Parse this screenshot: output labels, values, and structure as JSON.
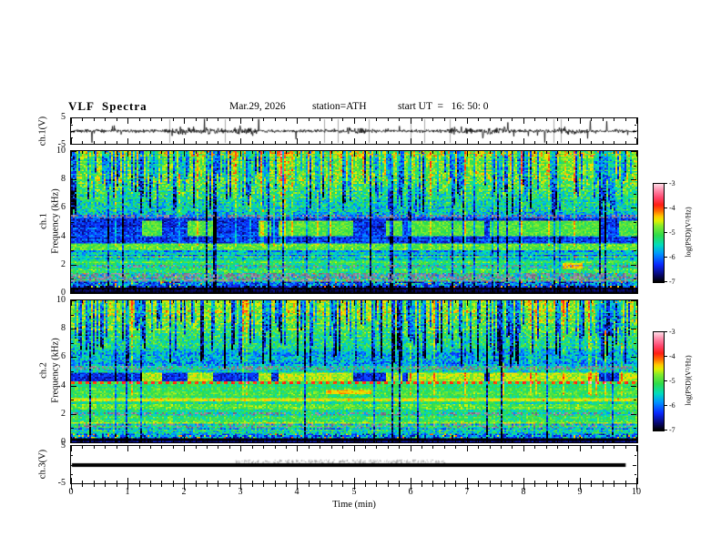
{
  "header": {
    "title": "VLF  Spectra",
    "date": "Mar.29, 2026",
    "station": "station=ATH",
    "start_ut": "start UT  =   16: 50: 0"
  },
  "axes": {
    "time_label": "Time  (min)",
    "time_ticks": [
      "0",
      "1",
      "2",
      "3",
      "4",
      "5",
      "6",
      "7",
      "8",
      "9",
      "10"
    ],
    "freq_ticks": [
      "10",
      "8",
      "6",
      "4",
      "2",
      "0"
    ],
    "volt_ticks": [
      "5",
      "-5"
    ],
    "ch1_wf_label": "ch.1(V)",
    "ch3_wf_label": "ch.3(V)",
    "spec1_channel_label": "ch.1",
    "spec2_channel_label": "ch.2",
    "freq_axis_label": "Frequency  (kHz)"
  },
  "colorbar": {
    "label": "log(PSD)(V²/Hz)",
    "ticks": [
      "-3",
      "-4",
      "-5",
      "-6",
      "-7"
    ],
    "z_range": [
      -7,
      -3
    ]
  },
  "colormap_stops": [
    [
      -7.0,
      0,
      0,
      0
    ],
    [
      -6.72,
      8,
      8,
      110
    ],
    [
      -6.3,
      10,
      40,
      255
    ],
    [
      -5.85,
      0,
      150,
      255
    ],
    [
      -5.5,
      0,
      220,
      190
    ],
    [
      -5.1,
      45,
      220,
      75
    ],
    [
      -4.72,
      130,
      235,
      45
    ],
    [
      -4.5,
      225,
      240,
      0
    ],
    [
      -4.32,
      255,
      200,
      0
    ],
    [
      -4.1,
      255,
      110,
      0
    ],
    [
      -3.85,
      255,
      30,
      20
    ],
    [
      -3.55,
      255,
      70,
      110
    ],
    [
      -3.25,
      255,
      140,
      170
    ],
    [
      -3.0,
      255,
      215,
      228
    ]
  ],
  "chart_data": [
    {
      "type": "line",
      "panel": "ch1_waveform",
      "x_range": [
        0,
        10
      ],
      "y_range": [
        -5,
        5
      ],
      "x_unit": "min",
      "y_unit": "V",
      "description": "broadband noise trace centred on 0 V with impulsive spikes to ±5 V",
      "gen": {
        "seed": 42,
        "points": 1244,
        "sigma": 0.5,
        "spike_prob": 0.013,
        "spike_amp_min": 1.5,
        "spike_amp_max": 4.6,
        "down_bias": 0.6,
        "bursts": 7,
        "burst_len": 26,
        "burst_gain": 2.2,
        "gray_lines": 10
      }
    },
    {
      "type": "heatmap",
      "panel": "ch1_spectrogram",
      "x_range": [
        0,
        10
      ],
      "y_range": [
        0,
        10
      ],
      "x_unit": "min",
      "y_unit": "kHz",
      "z_label": "log(PSD)(V²/Hz)",
      "z_range": [
        -7,
        -3
      ],
      "description": "VLF spectrogram: green hiss above 5.5 kHz cut by dark sferic streaks, dark 3.5-5.3 kHz band with intermittent green transmitter blocks, layered lines below 3 kHz, black band at 0-0.35 kHz",
      "gen": {
        "seed": 9,
        "cols": 311,
        "rows": 100,
        "bands": [
          [
            10,
            8.35,
            -4.85,
            0.45,
            0,
            0,
            0
          ],
          [
            8.35,
            5.5,
            -5.2,
            0.6,
            0,
            0,
            0.28
          ],
          [
            5.5,
            5.28,
            -5.9,
            0.4,
            0.45,
            0,
            0
          ],
          [
            5.28,
            3.45,
            -6.3,
            0.38,
            0,
            0,
            -0.1
          ],
          [
            3.45,
            2.95,
            -5.0,
            0.35,
            0,
            0,
            0
          ],
          [
            2.95,
            2.62,
            -5.7,
            0.5,
            0,
            0,
            0
          ],
          [
            2.62,
            2.48,
            -5.3,
            0.5,
            0,
            0.1,
            0
          ],
          [
            2.48,
            2.25,
            -5.75,
            0.5,
            0,
            0,
            0
          ],
          [
            2.25,
            1.98,
            -5.15,
            0.4,
            0,
            0,
            0
          ],
          [
            1.98,
            1.78,
            -5.55,
            0.5,
            0.3,
            0,
            0
          ],
          [
            1.78,
            1.4,
            -5.1,
            0.5,
            0,
            0,
            0
          ],
          [
            1.4,
            0.8,
            -5.4,
            0.55,
            0.5,
            0.06,
            0
          ],
          [
            0.8,
            0.35,
            -6.2,
            0.65,
            0,
            0.1,
            0
          ],
          [
            0.35,
            0,
            -6.9,
            0.15,
            0,
            0,
            0
          ]
        ],
        "blocks": {
          "f": [
            3.98,
            5.06
          ],
          "mode": "on_bright",
          "on_level": -4.95,
          "off_level": -6.3,
          "noise": 0.3,
          "intervals": [
            [
              1.25,
              1.6
            ],
            [
              2.05,
              2.5
            ],
            [
              3.3,
              3.55
            ],
            [
              3.65,
              5.0
            ],
            [
              5.55,
              5.85
            ],
            [
              5.95,
              7.3
            ],
            [
              7.38,
              9.33
            ],
            [
              9.68,
              10
            ]
          ]
        },
        "streaks": {
          "windows": [
            [
              0,
              3.35,
              0.55
            ],
            [
              3.35,
              5.2,
              0.38
            ],
            [
              5.2,
              6.6,
              0.48
            ],
            [
              6.6,
              9.3,
              0.5
            ],
            [
              9.3,
              9.72,
              0.8
            ],
            [
              9.72,
              10,
              0.25
            ]
          ],
          "smin": 0.8,
          "smax": 2.0,
          "fmin_base": 5.4,
          "fmin_spread": 3.2,
          "full_prob": 0.12
        },
        "bright_cols": {
          "prob": 0.05,
          "fmin": 3.3,
          "boost": 0.7
        },
        "yellow_cols": {
          "prob": 0.22,
          "fmin": 8.3,
          "boost": 0.35
        },
        "top_hot": {
          "fmin": 9.55,
          "boost": 0.5,
          "orange_prob": 0.08
        },
        "patches": [
          {
            "t": [
              8.68,
              9.02
            ],
            "f": [
              1.7,
              2.15
            ],
            "level": -4.35,
            "noise": 0.25
          }
        ]
      }
    },
    {
      "type": "heatmap",
      "panel": "ch2_spectrogram",
      "x_range": [
        0,
        10
      ],
      "y_range": [
        0,
        10
      ],
      "x_unit": "min",
      "y_unit": "kHz",
      "z_label": "log(PSD)(V²/Hz)",
      "z_range": [
        -7,
        -3
      ],
      "description": "VLF spectrogram: bright green top band, blue sferic streaks 5-9 kHz, yellow-green 4.4-4.9 kHz band with dark off-blocks, continuous red dotted line near 4.2 kHz, orange line near 3 kHz, green background below",
      "gen": {
        "seed": 23,
        "cols": 311,
        "rows": 100,
        "bands": [
          [
            10,
            9.3,
            -4.7,
            0.35,
            0,
            0,
            0
          ],
          [
            9.3,
            6.6,
            -5.05,
            0.55,
            0,
            0,
            0.3
          ],
          [
            6.6,
            5.35,
            -5.75,
            0.55,
            0,
            0,
            0.25
          ],
          [
            5.35,
            5.08,
            -5.45,
            0.4,
            0.4,
            0,
            0
          ],
          [
            5.08,
            4.88,
            -5.5,
            0.45,
            0,
            0,
            0
          ],
          [
            4.88,
            4.35,
            -4.75,
            0.3,
            0,
            0,
            0
          ],
          [
            4.35,
            4.1,
            -5.0,
            0.3,
            0,
            0,
            0
          ],
          [
            4.1,
            3.1,
            -5.05,
            0.35,
            0,
            0,
            0
          ],
          [
            3.1,
            2.88,
            -4.55,
            0.25,
            0,
            0.05,
            0
          ],
          [
            2.88,
            2.1,
            -5.1,
            0.4,
            0,
            0,
            0
          ],
          [
            2.1,
            1.85,
            -5.5,
            0.45,
            0.35,
            0,
            0
          ],
          [
            1.85,
            1.3,
            -5.0,
            0.45,
            0,
            0,
            0
          ],
          [
            1.3,
            1.05,
            -5.35,
            0.5,
            0.25,
            0,
            0
          ],
          [
            1.05,
            0.6,
            -5.55,
            0.6,
            0,
            0,
            0
          ],
          [
            0.6,
            0.3,
            -6.15,
            0.7,
            0,
            0.12,
            0
          ],
          [
            0.3,
            0,
            -6.85,
            0.2,
            0,
            0,
            0
          ]
        ],
        "blocks": {
          "f": [
            4.35,
            4.88
          ],
          "mode": "off_dark",
          "on_level": -4.62,
          "off_level": -6.35,
          "noise": 0.3,
          "intervals": [
            [
              1.25,
              1.6
            ],
            [
              2.05,
              2.5
            ],
            [
              3.3,
              3.55
            ],
            [
              3.65,
              5.0
            ],
            [
              5.55,
              5.85
            ],
            [
              5.95,
              7.3
            ],
            [
              7.38,
              9.33
            ],
            [
              9.68,
              10
            ]
          ]
        },
        "streaks": {
          "windows": [
            [
              0,
              1.6,
              0.6
            ],
            [
              1.6,
              3.4,
              0.45
            ],
            [
              3.4,
              6.6,
              0.55
            ],
            [
              6.6,
              8.6,
              0.42
            ],
            [
              8.6,
              9.3,
              0.5
            ],
            [
              9.3,
              9.72,
              0.85
            ],
            [
              9.72,
              10,
              0.25
            ]
          ],
          "smin": 1.0,
          "smax": 2.2,
          "fmin_base": 5.2,
          "fmin_spread": 3.4,
          "full_prob": 0.1
        },
        "bright_cols": {
          "prob": 0.05,
          "fmin": 3.3,
          "boost": 0.7
        },
        "yellow_cols": {
          "prob": 0.2,
          "fmin": 9.3,
          "boost": 0.3
        },
        "top_hot": {
          "fmin": 9.75,
          "boost": 0.3,
          "orange_prob": 0.05
        },
        "red_line": {
          "f": 4.21,
          "half": 0.06
        },
        "patches": [
          {
            "t": [
              4.5,
              5.3
            ],
            "f": [
              3.35,
              3.72
            ],
            "level": -4.35,
            "noise": 0.25
          }
        ]
      }
    },
    {
      "type": "line",
      "panel": "ch3_waveform",
      "x_range": [
        0,
        10
      ],
      "y_range": [
        -5,
        5
      ],
      "x_unit": "min",
      "y_unit": "V",
      "description": "flat saturated trace at 0 V (thick black line) ending near t = 9.8 min",
      "gen": {
        "seed": 5,
        "flat_value": 0,
        "line_end_frac": 0.978,
        "thickness": 4,
        "fuzz_t": [
          2.9,
          6.6
        ],
        "fuzz_count": 260
      }
    }
  ]
}
